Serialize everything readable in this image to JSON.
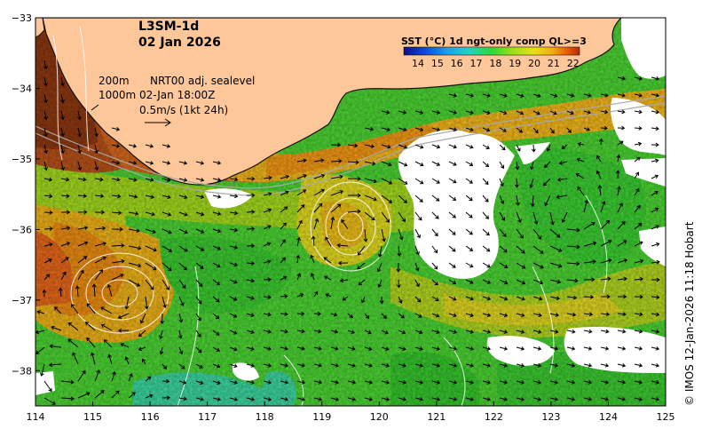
{
  "map": {
    "product": "L3SM-1d",
    "date": "02 Jan 2026",
    "lon_range": [
      114,
      125
    ],
    "lat_range": [
      -38.5,
      -33
    ],
    "x_ticks": [
      "114",
      "115",
      "116",
      "117",
      "118",
      "119",
      "120",
      "121",
      "122",
      "123",
      "124",
      "125"
    ],
    "y_ticks": [
      "−33",
      "−34",
      "−35",
      "−36",
      "−37",
      "−38"
    ],
    "depth_line_1": "200m",
    "depth_line_2": "1000m",
    "sealevel_label": "NRT00 adj. sealevel",
    "sealevel_time": "02-Jan 18:00Z",
    "velocity_scale": "0.5m/s (1kt 24h)",
    "credit": "© IMOS 12-Jan-2026 11:18 Hobart"
  },
  "legend": {
    "title": "SST (°C) 1d ngt-only comp QL>=3",
    "labels": [
      "14",
      "15",
      "16",
      "17",
      "18",
      "19",
      "20",
      "21",
      "22"
    ],
    "colors": [
      "#0a0f8c",
      "#1446d8",
      "#1ea0e6",
      "#25d2c2",
      "#30d834",
      "#9ce01a",
      "#e8e018",
      "#f4a810",
      "#e85a08",
      "#b82a0a"
    ]
  },
  "colors": {
    "land": "#fdc79a",
    "coast": "#111111",
    "cloud": "#ffffff"
  }
}
